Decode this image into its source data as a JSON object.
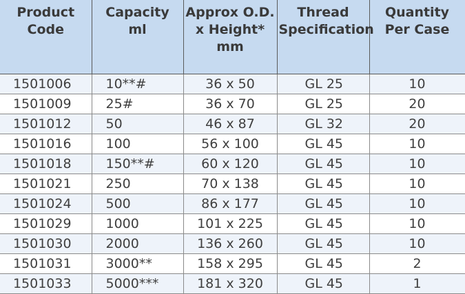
{
  "table": {
    "headers": [
      [
        "Product",
        "Code"
      ],
      [
        "Capacity",
        "ml"
      ],
      [
        "Approx O.D.",
        "x Height*",
        "mm"
      ],
      [
        "Thread",
        "Specification"
      ],
      [
        "Quantity",
        "Per Case"
      ]
    ],
    "rows": [
      [
        "1501006",
        "10**#",
        "36 x 50",
        "GL 25",
        "10"
      ],
      [
        "1501009",
        "25#",
        "36 x 70",
        "GL 25",
        "20"
      ],
      [
        "1501012",
        "50",
        "46 x 87",
        "GL 32",
        "20"
      ],
      [
        "1501016",
        "100",
        "56 x 100",
        "GL 45",
        "10"
      ],
      [
        "1501018",
        "150**#",
        "60 x 120",
        "GL 45",
        "10"
      ],
      [
        "1501021",
        "250",
        "70 x 138",
        "GL 45",
        "10"
      ],
      [
        "1501024",
        "500",
        "86 x 177",
        "GL 45",
        "10"
      ],
      [
        "1501029",
        "1000",
        "101 x 225",
        "GL 45",
        "10"
      ],
      [
        "1501030",
        "2000",
        "136 x 260",
        "GL 45",
        "10"
      ],
      [
        "1501031",
        "3000**",
        "158 x 295",
        "GL 45",
        "2"
      ],
      [
        "1501033",
        "5000***",
        "181 x 320",
        "GL 45",
        "1"
      ]
    ]
  }
}
